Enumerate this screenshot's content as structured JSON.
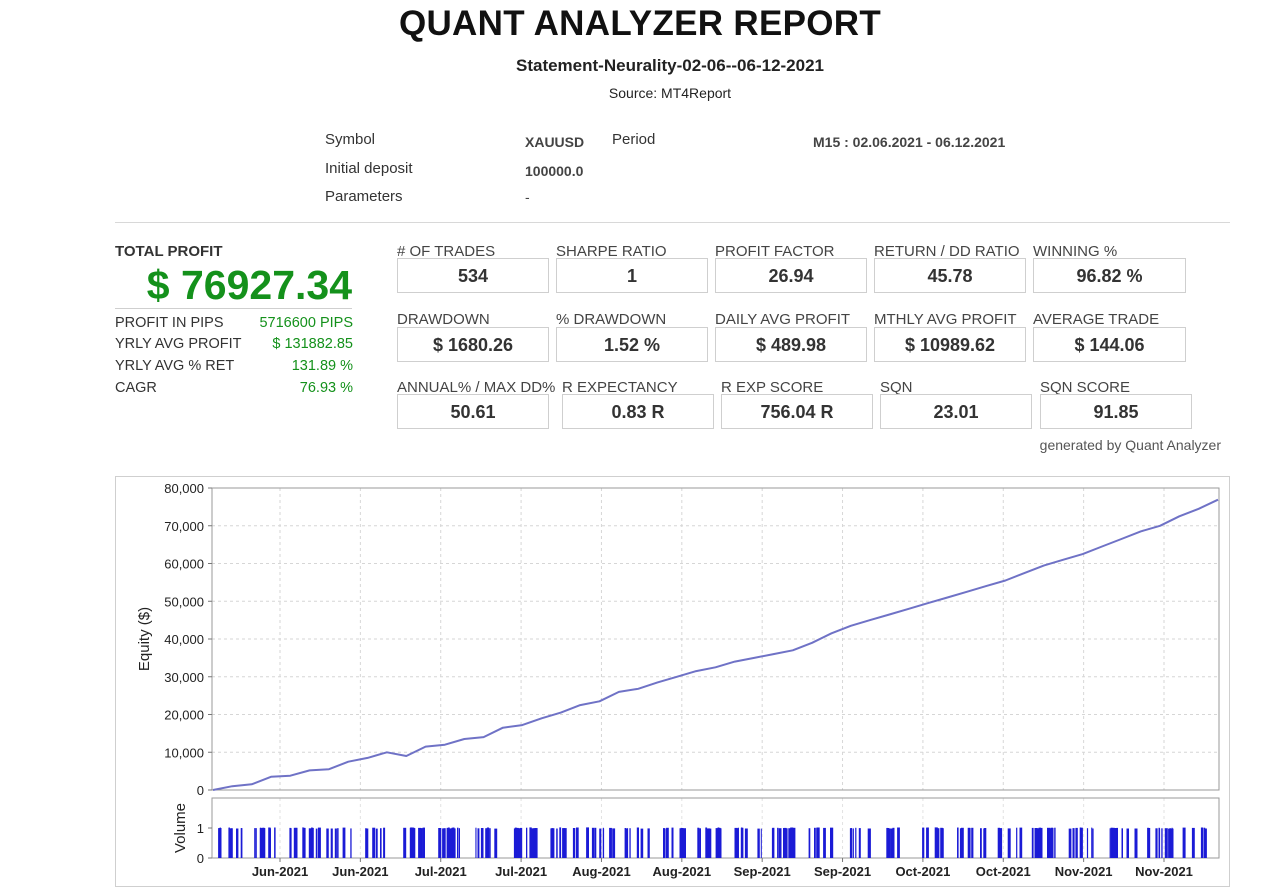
{
  "report": {
    "title": "QUANT ANALYZER REPORT",
    "statement": "Statement-Neurality-02-06--06-12-2021",
    "source": "Source: MT4Report"
  },
  "info": {
    "symbol_label": "Symbol",
    "symbol_value": "XAUUSD",
    "period_label": "Period",
    "period_value": "M15 : 02.06.2021 - 06.12.2021",
    "deposit_label": "Initial deposit",
    "deposit_value": "100000.0",
    "params_label": "Parameters",
    "params_value": "-"
  },
  "summary": {
    "total_profit_label": "TOTAL PROFIT",
    "total_profit_value": "$ 76927.34",
    "stats": [
      {
        "label": "PROFIT IN PIPS",
        "value": "5716600 PIPS"
      },
      {
        "label": "YRLY AVG PROFIT",
        "value": "$ 131882.85"
      },
      {
        "label": "YRLY AVG % RET",
        "value": "131.89 %"
      },
      {
        "label": "CAGR",
        "value": "76.93 %"
      }
    ]
  },
  "metrics": [
    {
      "label": "# OF TRADES",
      "value": "534"
    },
    {
      "label": "SHARPE RATIO",
      "value": "1"
    },
    {
      "label": "PROFIT FACTOR",
      "value": "26.94"
    },
    {
      "label": "RETURN / DD RATIO",
      "value": "45.78"
    },
    {
      "label": "WINNING %",
      "value": "96.82 %"
    },
    {
      "label": "DRAWDOWN",
      "value": "$ 1680.26"
    },
    {
      "label": "% DRAWDOWN",
      "value": "1.52 %"
    },
    {
      "label": "DAILY AVG PROFIT",
      "value": "$ 489.98"
    },
    {
      "label": "MTHLY AVG PROFIT",
      "value": "$ 10989.62"
    },
    {
      "label": "AVERAGE TRADE",
      "value": "$ 144.06"
    },
    {
      "label": "ANNUAL% / MAX DD%",
      "value": "50.61"
    },
    {
      "label": "R EXPECTANCY",
      "value": "0.83 R"
    },
    {
      "label": "R EXP SCORE",
      "value": "756.04 R"
    },
    {
      "label": "SQN",
      "value": "23.01"
    },
    {
      "label": "SQN SCORE",
      "value": "91.85"
    }
  ],
  "generated_by": "generated by Quant Analyzer",
  "chart_data": {
    "type": "line",
    "ylabel": "Equity ($)",
    "volume_label": "Volume",
    "ylim": [
      0,
      80000
    ],
    "yticks": [
      "0",
      "10,000",
      "20,000",
      "30,000",
      "40,000",
      "50,000",
      "60,000",
      "70,000",
      "80,000"
    ],
    "volume_ylim": [
      0,
      2
    ],
    "volume_ticks": [
      "0",
      "1"
    ],
    "x_ticks": [
      "Jun-2021",
      "Jun-2021",
      "Jul-2021",
      "Jul-2021",
      "Aug-2021",
      "Aug-2021",
      "Sep-2021",
      "Sep-2021",
      "Oct-2021",
      "Oct-2021",
      "Nov-2021",
      "Nov-2021"
    ],
    "grid": true,
    "line_color": "#6f72c6",
    "volume_color": "#1b1bd6",
    "series": [
      {
        "values": [
          0,
          1000,
          1500,
          3500,
          3800,
          5200,
          5500,
          7500,
          8500,
          10000,
          9000,
          11500,
          12000,
          13500,
          14000,
          16500,
          17200,
          19000,
          20500,
          22500,
          23500,
          26000,
          26800,
          28500,
          30000,
          31500,
          32500,
          34000,
          35000,
          36000,
          37000,
          39000,
          41500,
          43500,
          45000,
          46500,
          48000,
          49500,
          51000,
          52500,
          54000,
          55500,
          57500,
          59500,
          61000,
          62500,
          64500,
          66500,
          68500,
          70000,
          72500,
          74500,
          76900
        ]
      }
    ]
  }
}
